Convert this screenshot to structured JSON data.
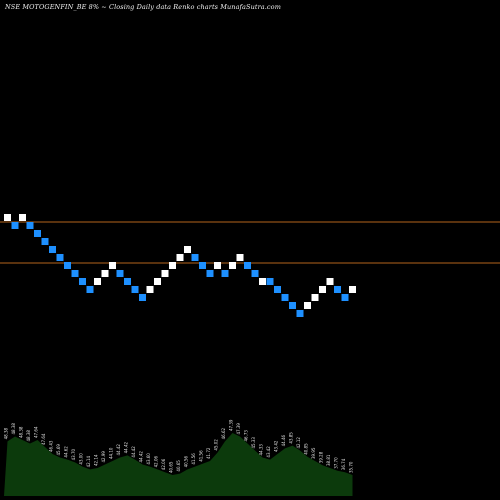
{
  "header": {
    "title": "NSE MOTOGENFIN_BE 8% ~  Closing Daily data  Renko  charts MunafaSutra.com"
  },
  "chart_data": {
    "type": "renko",
    "box_size_pct": 8,
    "title": "NSE MOTOGENFIN_BE 8% ~  Closing Daily data  Renko  charts MunafaSutra.com",
    "colors": {
      "up": "#ffffff",
      "down": "#1e90ff",
      "reference_line": "#b5651d",
      "volume_fill": "#0c3a0c"
    },
    "reference_levels": [
      49.5,
      45.8
    ],
    "bricks": [
      {
        "dir": "up",
        "level": 4
      },
      {
        "dir": "down",
        "level": 3
      },
      {
        "dir": "up",
        "level": 4
      },
      {
        "dir": "down",
        "level": 3
      },
      {
        "dir": "down",
        "level": 2
      },
      {
        "dir": "down",
        "level": 1
      },
      {
        "dir": "down",
        "level": 0
      },
      {
        "dir": "down",
        "level": -1
      },
      {
        "dir": "down",
        "level": -2
      },
      {
        "dir": "down",
        "level": -3
      },
      {
        "dir": "down",
        "level": -4
      },
      {
        "dir": "down",
        "level": -5
      },
      {
        "dir": "up",
        "level": -4
      },
      {
        "dir": "up",
        "level": -3
      },
      {
        "dir": "up",
        "level": -2
      },
      {
        "dir": "down",
        "level": -3
      },
      {
        "dir": "down",
        "level": -4
      },
      {
        "dir": "down",
        "level": -5
      },
      {
        "dir": "down",
        "level": -6
      },
      {
        "dir": "up",
        "level": -5
      },
      {
        "dir": "up",
        "level": -4
      },
      {
        "dir": "up",
        "level": -3
      },
      {
        "dir": "up",
        "level": -2
      },
      {
        "dir": "up",
        "level": -1
      },
      {
        "dir": "up",
        "level": 0
      },
      {
        "dir": "down",
        "level": -1
      },
      {
        "dir": "down",
        "level": -2
      },
      {
        "dir": "down",
        "level": -3
      },
      {
        "dir": "up",
        "level": -2
      },
      {
        "dir": "down",
        "level": -3
      },
      {
        "dir": "up",
        "level": -2
      },
      {
        "dir": "up",
        "level": -1
      },
      {
        "dir": "down",
        "level": -2
      },
      {
        "dir": "down",
        "level": -3
      },
      {
        "dir": "up",
        "level": -4
      },
      {
        "dir": "down",
        "level": -4
      },
      {
        "dir": "down",
        "level": -5
      },
      {
        "dir": "down",
        "level": -6
      },
      {
        "dir": "down",
        "level": -7
      },
      {
        "dir": "down",
        "level": -8
      },
      {
        "dir": "up",
        "level": -7
      },
      {
        "dir": "up",
        "level": -6
      },
      {
        "dir": "up",
        "level": -5
      },
      {
        "dir": "up",
        "level": -4
      },
      {
        "dir": "down",
        "level": -5
      },
      {
        "dir": "down",
        "level": -6
      },
      {
        "dir": "up",
        "level": -5
      }
    ],
    "volume_labels": [
      "48.38",
      "48.38",
      "48.38",
      "48.38",
      "47.64",
      "47.64",
      "46.43",
      "45.69",
      "44.62",
      "43.70",
      "43.00",
      "42.14",
      "42.14",
      "42.99",
      "44.10",
      "44.42",
      "44.42",
      "44.42",
      "44.42",
      "43.60",
      "42.06",
      "42.06",
      "40.65",
      "40.65",
      "40.56",
      "41.56",
      "41.56",
      "41.72",
      "45.02",
      "46.62",
      "47.39",
      "47.39",
      "46.73",
      "45.33",
      "44.33",
      "43.42",
      "43.42",
      "44.46",
      "43.85",
      "42.12",
      "40.85",
      "39.95",
      "39.28",
      "38.81",
      "37.70",
      "36.74",
      "35.70"
    ],
    "volume_values": [
      0.78,
      0.85,
      0.8,
      0.75,
      0.8,
      0.7,
      0.6,
      0.55,
      0.52,
      0.48,
      0.42,
      0.38,
      0.4,
      0.45,
      0.5,
      0.55,
      0.58,
      0.52,
      0.45,
      0.42,
      0.38,
      0.34,
      0.3,
      0.32,
      0.38,
      0.42,
      0.46,
      0.5,
      0.62,
      0.78,
      0.9,
      0.85,
      0.75,
      0.65,
      0.55,
      0.52,
      0.6,
      0.68,
      0.72,
      0.65,
      0.56,
      0.5,
      0.44,
      0.4,
      0.36,
      0.34,
      0.3
    ]
  }
}
